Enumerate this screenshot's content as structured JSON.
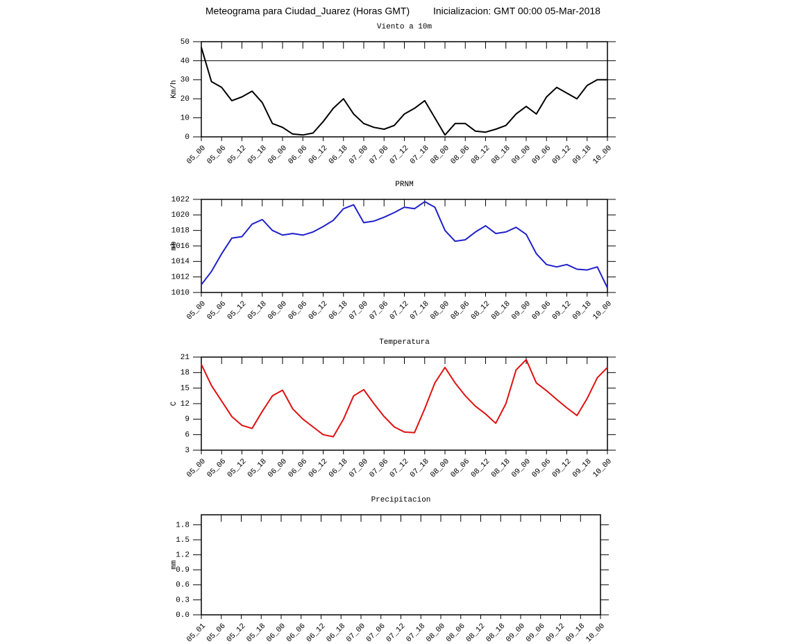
{
  "header": {
    "title": "Meteograma para Ciudad_Juarez (Horas GMT)",
    "init": "Inicializacion: GMT 00:00 05-Mar-2018"
  },
  "chart_data": [
    {
      "type": "line",
      "title": "Viento a 10m",
      "y_label": "Km/h",
      "color": "#000000",
      "hline": 40,
      "x": [
        0,
        3,
        6,
        9,
        12,
        15,
        18,
        21,
        24,
        27,
        30,
        33,
        36,
        39,
        42,
        45,
        48,
        51,
        54,
        57,
        60,
        63,
        66,
        69,
        72,
        75,
        78,
        81,
        84,
        87,
        90,
        93,
        96,
        99,
        102,
        105,
        108,
        111,
        114,
        117,
        120
      ],
      "values": [
        47,
        29,
        26,
        19,
        21,
        24,
        18,
        7,
        5,
        1.5,
        1,
        2,
        8,
        15,
        20,
        12,
        7,
        5,
        4,
        6,
        12,
        15,
        19,
        10,
        1,
        7,
        7,
        3,
        2.5,
        4,
        6,
        12,
        16,
        12,
        21,
        26,
        23,
        20,
        27,
        30,
        30
      ],
      "xlim": [
        0,
        120
      ],
      "ylim": [
        0,
        50
      ],
      "yticks": [
        0,
        10,
        20,
        30,
        40,
        50
      ],
      "xticks": [
        {
          "value": 0,
          "label": "05_00"
        },
        {
          "value": 6,
          "label": "05_06"
        },
        {
          "value": 12,
          "label": "05_12"
        },
        {
          "value": 18,
          "label": "05_18"
        },
        {
          "value": 24,
          "label": "06_00"
        },
        {
          "value": 30,
          "label": "06_06"
        },
        {
          "value": 36,
          "label": "06_12"
        },
        {
          "value": 42,
          "label": "06_18"
        },
        {
          "value": 48,
          "label": "07_00"
        },
        {
          "value": 54,
          "label": "07_06"
        },
        {
          "value": 60,
          "label": "07_12"
        },
        {
          "value": 66,
          "label": "07_18"
        },
        {
          "value": 72,
          "label": "08_00"
        },
        {
          "value": 78,
          "label": "08_06"
        },
        {
          "value": 84,
          "label": "08_12"
        },
        {
          "value": 90,
          "label": "08_18"
        },
        {
          "value": 96,
          "label": "09_00"
        },
        {
          "value": 102,
          "label": "09_06"
        },
        {
          "value": 108,
          "label": "09_12"
        },
        {
          "value": 114,
          "label": "09_18"
        },
        {
          "value": 120,
          "label": "10_00"
        }
      ]
    },
    {
      "type": "line",
      "title": "PRNM",
      "y_label": "mb",
      "color": "#1f1fcc",
      "x": [
        0,
        3,
        6,
        9,
        12,
        15,
        18,
        21,
        24,
        27,
        30,
        33,
        36,
        39,
        42,
        45,
        48,
        51,
        54,
        57,
        60,
        63,
        66,
        69,
        72,
        75,
        78,
        81,
        84,
        87,
        90,
        93,
        96,
        99,
        102,
        105,
        108,
        111,
        114,
        117,
        120
      ],
      "values": [
        1011,
        1012.7,
        1015,
        1017,
        1017.2,
        1018.8,
        1019.4,
        1018,
        1017.4,
        1017.6,
        1017.4,
        1017.8,
        1018.5,
        1019.3,
        1020.8,
        1021.3,
        1019,
        1019.2,
        1019.7,
        1020.3,
        1021,
        1020.8,
        1021.7,
        1021,
        1018,
        1016.6,
        1016.8,
        1017.8,
        1018.6,
        1017.6,
        1017.8,
        1018.4,
        1017.5,
        1015,
        1013.6,
        1013.3,
        1013.6,
        1013,
        1012.9,
        1013.3,
        1010.6
      ],
      "xlim": [
        0,
        120
      ],
      "ylim": [
        1010,
        1022
      ],
      "yticks": [
        1010,
        1012,
        1014,
        1016,
        1018,
        1020,
        1022
      ],
      "xticks": [
        {
          "value": 0,
          "label": "05_00"
        },
        {
          "value": 6,
          "label": "05_06"
        },
        {
          "value": 12,
          "label": "05_12"
        },
        {
          "value": 18,
          "label": "05_18"
        },
        {
          "value": 24,
          "label": "06_00"
        },
        {
          "value": 30,
          "label": "06_06"
        },
        {
          "value": 36,
          "label": "06_12"
        },
        {
          "value": 42,
          "label": "06_18"
        },
        {
          "value": 48,
          "label": "07_00"
        },
        {
          "value": 54,
          "label": "07_06"
        },
        {
          "value": 60,
          "label": "07_12"
        },
        {
          "value": 66,
          "label": "07_18"
        },
        {
          "value": 72,
          "label": "08_00"
        },
        {
          "value": 78,
          "label": "08_06"
        },
        {
          "value": 84,
          "label": "08_12"
        },
        {
          "value": 90,
          "label": "08_18"
        },
        {
          "value": 96,
          "label": "09_00"
        },
        {
          "value": 102,
          "label": "09_06"
        },
        {
          "value": 108,
          "label": "09_12"
        },
        {
          "value": 114,
          "label": "09_18"
        },
        {
          "value": 120,
          "label": "10_00"
        }
      ]
    },
    {
      "type": "line",
      "title": "Temperatura",
      "y_label": "C",
      "color": "#e01010",
      "x": [
        0,
        3,
        6,
        9,
        12,
        15,
        18,
        21,
        24,
        27,
        30,
        33,
        36,
        39,
        42,
        45,
        48,
        51,
        54,
        57,
        60,
        63,
        66,
        69,
        72,
        75,
        78,
        81,
        84,
        87,
        90,
        93,
        96,
        99,
        102,
        105,
        108,
        111,
        114,
        117,
        120
      ],
      "values": [
        19.6,
        15.5,
        12.5,
        9.5,
        7.8,
        7.2,
        10.5,
        13.5,
        14.6,
        11,
        9,
        7.5,
        6,
        5.6,
        9,
        13.5,
        14.7,
        12,
        9.5,
        7.5,
        6.5,
        6.4,
        11,
        16,
        19,
        16,
        13.5,
        11.5,
        10,
        8.2,
        12,
        18.5,
        20.5,
        16,
        14.5,
        12.8,
        11.2,
        9.7,
        13,
        17,
        19
      ],
      "xlim": [
        0,
        120
      ],
      "ylim": [
        3,
        21
      ],
      "yticks": [
        3,
        6,
        9,
        12,
        15,
        18,
        21
      ],
      "xticks": [
        {
          "value": 0,
          "label": "05_00"
        },
        {
          "value": 6,
          "label": "05_06"
        },
        {
          "value": 12,
          "label": "05_12"
        },
        {
          "value": 18,
          "label": "05_18"
        },
        {
          "value": 24,
          "label": "06_00"
        },
        {
          "value": 30,
          "label": "06_06"
        },
        {
          "value": 36,
          "label": "06_12"
        },
        {
          "value": 42,
          "label": "06_18"
        },
        {
          "value": 48,
          "label": "07_00"
        },
        {
          "value": 54,
          "label": "07_06"
        },
        {
          "value": 60,
          "label": "07_12"
        },
        {
          "value": 66,
          "label": "07_18"
        },
        {
          "value": 72,
          "label": "08_00"
        },
        {
          "value": 78,
          "label": "08_06"
        },
        {
          "value": 84,
          "label": "08_12"
        },
        {
          "value": 90,
          "label": "08_18"
        },
        {
          "value": 96,
          "label": "09_00"
        },
        {
          "value": 102,
          "label": "09_06"
        },
        {
          "value": 108,
          "label": "09_12"
        },
        {
          "value": 114,
          "label": "09_18"
        },
        {
          "value": 120,
          "label": "10_00"
        }
      ]
    },
    {
      "type": "bar",
      "title": "Precipitacion",
      "y_label": "mm",
      "categories": [
        "05_01",
        "05_06",
        "05_12",
        "05_18",
        "06_00",
        "06_06",
        "06_12",
        "06_18",
        "07_00",
        "07_06",
        "07_12",
        "07_18",
        "08_00",
        "08_06",
        "08_12",
        "08_18",
        "09_00",
        "09_06",
        "09_12",
        "09_18",
        "10_00"
      ],
      "ylim": [
        0,
        2
      ],
      "yticks": [
        {
          "value": 0,
          "label": "0.0"
        },
        0.3,
        0.6,
        0.9,
        1.2,
        1.5,
        1.8
      ]
    }
  ]
}
